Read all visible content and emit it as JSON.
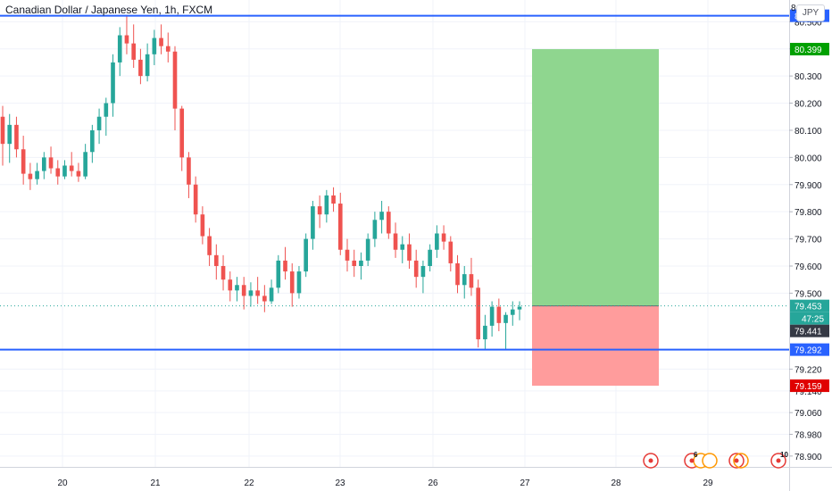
{
  "header": {
    "title": "Canadian Dollar / Japanese Yen, 1h, FXCM",
    "currency": "JPY"
  },
  "chart_data": {
    "type": "candlestick",
    "instrument": "Canadian Dollar / Japanese Yen",
    "interval": "1h",
    "source": "FXCM",
    "ylim": [
      78.86,
      80.58
    ],
    "y_ticks": [
      "80.500",
      "80.400",
      "80.300",
      "80.200",
      "80.100",
      "80.000",
      "79.900",
      "79.800",
      "79.700",
      "79.600",
      "79.500",
      "79.220",
      "79.140",
      "79.060",
      "78.980",
      "78.900"
    ],
    "x_ticks": [
      "20",
      "21",
      "22",
      "23",
      "26",
      "27",
      "28",
      "29"
    ],
    "grid": true,
    "horizontal_lines": [
      {
        "value": 80.522,
        "label": "80.522",
        "color": "#2962ff"
      },
      {
        "value": 79.292,
        "label": "79.292",
        "color": "#2962ff"
      }
    ],
    "position": {
      "target": {
        "value": 80.399,
        "label": "80.399",
        "color": "#00a000"
      },
      "entry": 79.453,
      "stop": {
        "value": 79.159,
        "label": "79.159",
        "color": "#e00000"
      },
      "profit_color": "#8fd68f",
      "loss_color": "#ff9c9c"
    },
    "last_price": {
      "value": 79.453,
      "label": "79.453",
      "countdown": "47:25",
      "color": "#26a69a"
    },
    "bid_price": {
      "value": 79.441,
      "label": "79.441"
    },
    "up_color": "#26a69a",
    "down_color": "#ef5350",
    "candles": [
      [
        80.15,
        80.19,
        79.97,
        80.05
      ],
      [
        80.05,
        80.16,
        79.98,
        80.12
      ],
      [
        80.12,
        80.15,
        80.0,
        80.03
      ],
      [
        80.03,
        80.08,
        79.9,
        79.94
      ],
      [
        79.94,
        79.98,
        79.88,
        79.92
      ],
      [
        79.92,
        79.98,
        79.9,
        79.95
      ],
      [
        79.95,
        80.02,
        79.92,
        80.0
      ],
      [
        80.0,
        80.04,
        79.94,
        79.96
      ],
      [
        79.96,
        79.99,
        79.9,
        79.93
      ],
      [
        79.93,
        79.99,
        79.92,
        79.97
      ],
      [
        79.97,
        80.02,
        79.93,
        79.95
      ],
      [
        79.95,
        79.98,
        79.91,
        79.93
      ],
      [
        79.93,
        80.05,
        79.92,
        80.02
      ],
      [
        80.02,
        80.12,
        79.98,
        80.1
      ],
      [
        80.1,
        80.18,
        80.05,
        80.15
      ],
      [
        80.15,
        80.22,
        80.08,
        80.2
      ],
      [
        80.2,
        80.38,
        80.15,
        80.35
      ],
      [
        80.35,
        80.48,
        80.3,
        80.45
      ],
      [
        80.45,
        80.52,
        80.38,
        80.42
      ],
      [
        80.42,
        80.49,
        80.33,
        80.36
      ],
      [
        80.36,
        80.4,
        80.27,
        80.3
      ],
      [
        80.3,
        80.42,
        80.28,
        80.38
      ],
      [
        80.38,
        80.47,
        80.34,
        80.44
      ],
      [
        80.44,
        80.49,
        80.38,
        80.41
      ],
      [
        80.41,
        80.46,
        80.35,
        80.39
      ],
      [
        80.39,
        80.41,
        80.1,
        80.18
      ],
      [
        80.18,
        80.19,
        79.95,
        80.0
      ],
      [
        80.0,
        80.02,
        79.85,
        79.9
      ],
      [
        79.9,
        79.93,
        79.76,
        79.79
      ],
      [
        79.79,
        79.82,
        79.68,
        79.71
      ],
      [
        79.71,
        79.74,
        79.6,
        79.64
      ],
      [
        79.64,
        79.68,
        79.55,
        79.6
      ],
      [
        79.6,
        79.64,
        79.51,
        79.55
      ],
      [
        79.55,
        79.58,
        79.47,
        79.51
      ],
      [
        79.51,
        79.56,
        79.47,
        79.53
      ],
      [
        79.53,
        79.56,
        79.44,
        79.49
      ],
      [
        79.49,
        79.54,
        79.45,
        79.51
      ],
      [
        79.51,
        79.56,
        79.46,
        79.49
      ],
      [
        79.49,
        79.53,
        79.43,
        79.47
      ],
      [
        79.47,
        79.55,
        79.46,
        79.52
      ],
      [
        79.52,
        79.64,
        79.5,
        79.62
      ],
      [
        79.62,
        79.67,
        79.55,
        79.58
      ],
      [
        79.58,
        79.61,
        79.45,
        79.5
      ],
      [
        79.5,
        79.6,
        79.48,
        79.58
      ],
      [
        79.58,
        79.72,
        79.56,
        79.7
      ],
      [
        79.7,
        79.84,
        79.66,
        79.82
      ],
      [
        79.82,
        79.86,
        79.74,
        79.79
      ],
      [
        79.79,
        79.88,
        79.76,
        79.86
      ],
      [
        79.86,
        79.89,
        79.8,
        79.83
      ],
      [
        79.83,
        79.87,
        79.64,
        79.66
      ],
      [
        79.66,
        79.7,
        79.58,
        79.62
      ],
      [
        79.62,
        79.66,
        79.56,
        79.6
      ],
      [
        79.6,
        79.65,
        79.55,
        79.62
      ],
      [
        79.62,
        79.72,
        79.6,
        79.7
      ],
      [
        79.7,
        79.8,
        79.67,
        79.77
      ],
      [
        79.77,
        79.84,
        79.72,
        79.8
      ],
      [
        79.8,
        79.82,
        79.7,
        79.72
      ],
      [
        79.72,
        79.76,
        79.63,
        79.66
      ],
      [
        79.66,
        79.71,
        79.61,
        79.68
      ],
      [
        79.68,
        79.72,
        79.59,
        79.62
      ],
      [
        79.62,
        79.66,
        79.52,
        79.56
      ],
      [
        79.56,
        79.62,
        79.5,
        79.6
      ],
      [
        79.6,
        79.68,
        79.58,
        79.66
      ],
      [
        79.66,
        79.75,
        79.63,
        79.72
      ],
      [
        79.72,
        79.75,
        79.66,
        79.69
      ],
      [
        79.69,
        79.71,
        79.58,
        79.61
      ],
      [
        79.61,
        79.64,
        79.5,
        79.53
      ],
      [
        79.53,
        79.6,
        79.48,
        79.57
      ],
      [
        79.57,
        79.63,
        79.49,
        79.52
      ],
      [
        79.52,
        79.55,
        79.3,
        79.33
      ],
      [
        79.33,
        79.42,
        79.29,
        79.38
      ],
      [
        79.38,
        79.47,
        79.34,
        79.45
      ],
      [
        79.45,
        79.48,
        79.36,
        79.39
      ],
      [
        79.39,
        79.43,
        79.29,
        79.42
      ],
      [
        79.42,
        79.47,
        79.38,
        79.44
      ],
      [
        79.44,
        79.47,
        79.4,
        79.45
      ]
    ]
  },
  "event_markers": [
    {
      "icon": "canada-flag-icon",
      "label": ""
    },
    {
      "icon": "event-cluster-icon",
      "label": "6"
    },
    {
      "icon": "canada-flag-icon",
      "label": ""
    },
    {
      "icon": "event-dot-icon",
      "label": "10"
    }
  ]
}
